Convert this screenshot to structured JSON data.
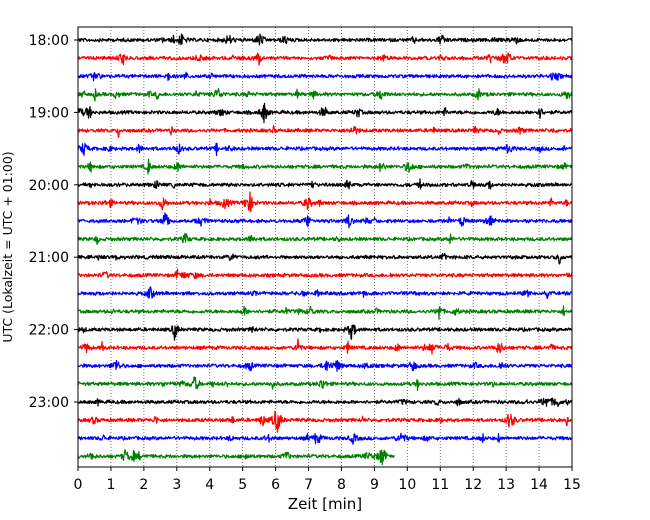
{
  "chart_data": {
    "type": "line",
    "title": "",
    "xlabel": "Zeit  [min]",
    "ylabel": "UTC (Lokalzeit = UTC + 01:00)",
    "xlim": [
      0,
      15
    ],
    "x_ticks": [
      "0",
      "1",
      "2",
      "3",
      "4",
      "5",
      "6",
      "7",
      "8",
      "9",
      "10",
      "11",
      "12",
      "13",
      "14",
      "15"
    ],
    "y_ticks": [
      "18:00",
      "19:00",
      "20:00",
      "21:00",
      "22:00",
      "23:00"
    ],
    "grid": "vertical dotted",
    "trace_interval_min": 15,
    "colors": [
      "#000000",
      "#ff0000",
      "#0000ff",
      "#008000"
    ],
    "series": [
      {
        "start": "18:00",
        "color": "#000000",
        "end_min": 15
      },
      {
        "start": "18:15",
        "color": "#ff0000",
        "end_min": 15
      },
      {
        "start": "18:30",
        "color": "#0000ff",
        "end_min": 15
      },
      {
        "start": "18:45",
        "color": "#008000",
        "end_min": 15
      },
      {
        "start": "19:00",
        "color": "#000000",
        "end_min": 15
      },
      {
        "start": "19:15",
        "color": "#ff0000",
        "end_min": 15
      },
      {
        "start": "19:30",
        "color": "#0000ff",
        "end_min": 15
      },
      {
        "start": "19:45",
        "color": "#008000",
        "end_min": 15
      },
      {
        "start": "20:00",
        "color": "#000000",
        "end_min": 15
      },
      {
        "start": "20:15",
        "color": "#ff0000",
        "end_min": 15
      },
      {
        "start": "20:30",
        "color": "#0000ff",
        "end_min": 15
      },
      {
        "start": "20:45",
        "color": "#008000",
        "end_min": 15
      },
      {
        "start": "21:00",
        "color": "#000000",
        "end_min": 15
      },
      {
        "start": "21:15",
        "color": "#ff0000",
        "end_min": 15
      },
      {
        "start": "21:30",
        "color": "#0000ff",
        "end_min": 15
      },
      {
        "start": "21:45",
        "color": "#008000",
        "end_min": 15
      },
      {
        "start": "22:00",
        "color": "#000000",
        "end_min": 15
      },
      {
        "start": "22:15",
        "color": "#ff0000",
        "end_min": 15
      },
      {
        "start": "22:30",
        "color": "#0000ff",
        "end_min": 15
      },
      {
        "start": "22:45",
        "color": "#008000",
        "end_min": 15
      },
      {
        "start": "23:00",
        "color": "#000000",
        "end_min": 15
      },
      {
        "start": "23:15",
        "color": "#ff0000",
        "end_min": 15
      },
      {
        "start": "23:30",
        "color": "#0000ff",
        "end_min": 15
      },
      {
        "start": "23:45",
        "color": "#008000",
        "end_min": 9.6
      }
    ]
  }
}
